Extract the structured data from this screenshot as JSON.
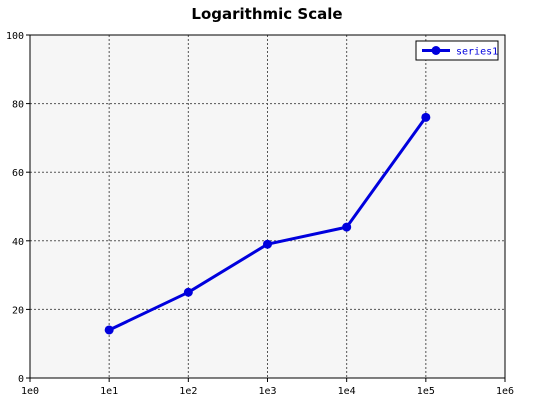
{
  "chart_data": {
    "type": "line",
    "title": "Logarithmic Scale",
    "xlabel": "",
    "ylabel": "",
    "x_scale": "log",
    "x_tick_labels": [
      "1e0",
      "1e1",
      "1e2",
      "1e3",
      "1e4",
      "1e5",
      "1e6"
    ],
    "xlim": [
      1,
      1000000
    ],
    "ylim": [
      0,
      100
    ],
    "y_tick_labels": [
      "0",
      "20",
      "40",
      "60",
      "80",
      "100"
    ],
    "grid": true,
    "legend_position": "top-right",
    "series": [
      {
        "name": "series1",
        "color": "#0000dd",
        "x": [
          10,
          100,
          1000,
          10000,
          100000
        ],
        "y": [
          14,
          25,
          39,
          44,
          76
        ]
      }
    ]
  },
  "colors": {
    "plot_background": "#f6f6f6",
    "grid": "#555555",
    "axis": "#000000"
  }
}
